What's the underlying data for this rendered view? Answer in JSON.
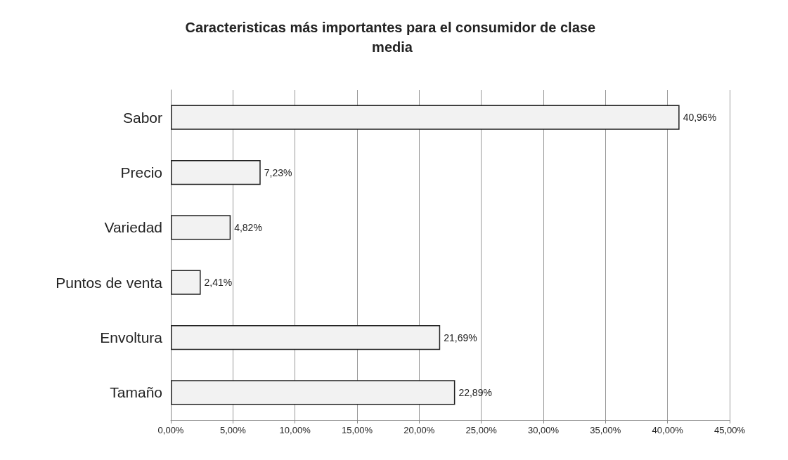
{
  "chart_data": {
    "type": "bar",
    "orientation": "horizontal",
    "title": "Caracteristicas más importantes para el consumidor de clase media",
    "categories": [
      "Sabor",
      "Precio",
      "Variedad",
      "Puntos de venta",
      "Envoltura",
      "Tamaño"
    ],
    "values": [
      40.96,
      7.23,
      4.82,
      2.41,
      21.69,
      22.89
    ],
    "value_labels": [
      "40,96%",
      "7,23%",
      "4,82%",
      "2,41%",
      "21,69%",
      "22,89%"
    ],
    "color": "#f2f2f2",
    "xlim": [
      0,
      45
    ],
    "xticks": [
      {
        "value": 0,
        "label": "0,00%"
      },
      {
        "value": 5,
        "label": "5,00%"
      },
      {
        "value": 10,
        "label": "10,00%"
      },
      {
        "value": 15,
        "label": "15,00%"
      },
      {
        "value": 20,
        "label": "20,00%"
      },
      {
        "value": 25,
        "label": "25,00%"
      },
      {
        "value": 30,
        "label": "30,00%"
      },
      {
        "value": 35,
        "label": "35,00%"
      },
      {
        "value": 40,
        "label": "40,00%"
      },
      {
        "value": 45,
        "label": "45,00%"
      }
    ],
    "grid": "x"
  }
}
